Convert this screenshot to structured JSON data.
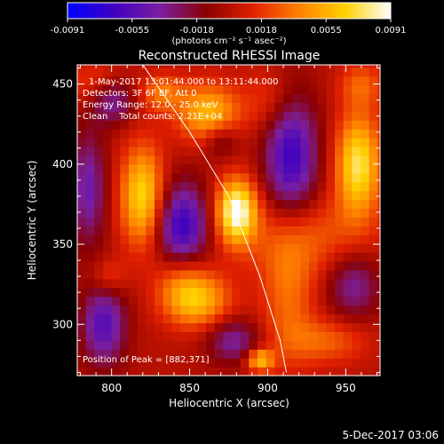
{
  "chart_data": {
    "type": "heatmap",
    "title": "Reconstructed RHESSI Image",
    "xlabel": "Heliocentric X (arcsec)",
    "ylabel": "Heliocentric Y (arcsec)",
    "xlim": [
      778,
      972
    ],
    "ylim": [
      268,
      462
    ],
    "x_ticks": [
      800,
      850,
      900,
      950
    ],
    "y_ticks": [
      300,
      350,
      400,
      450
    ],
    "colorbar": {
      "min": -0.0091,
      "max": 0.0091,
      "ticks": [
        "-0.0091",
        "-0.0055",
        "-0.0018",
        "0.0018",
        "0.0055",
        "0.0091"
      ],
      "unit_label": "(photons cm⁻² s⁻¹ asec⁻²)",
      "colormap": [
        "#0000ff",
        "#4000c0",
        "#7a1fa0",
        "#8a0000",
        "#e02000",
        "#ff8000",
        "#ffd000",
        "#ffffff"
      ]
    },
    "annotations": {
      "time_range": "1-May-2017 13:01:44.000 to 13:11:44.000",
      "detectors": "Detectors: 3F 6F 8F, Att 0",
      "energy_range": "Energy Range: 12.0 - 25.0 keV",
      "method": "Clean    Total counts: 2.21E+04",
      "peak": "Position of Peak = [882,371]"
    },
    "limb_curve": [
      [
        820,
        462
      ],
      [
        850,
        420
      ],
      [
        875,
        380
      ],
      [
        895,
        330
      ],
      [
        908,
        290
      ],
      [
        912,
        270
      ]
    ],
    "sources": [
      {
        "x": 880,
        "y": 371,
        "amp": 0.0091,
        "sx": 9,
        "sy": 14
      },
      {
        "x": 820,
        "y": 380,
        "amp": 0.007,
        "sx": 10,
        "sy": 22
      },
      {
        "x": 862,
        "y": 432,
        "amp": 0.0058,
        "sx": 14,
        "sy": 13
      },
      {
        "x": 958,
        "y": 400,
        "amp": 0.0075,
        "sx": 10,
        "sy": 22
      },
      {
        "x": 832,
        "y": 445,
        "amp": 0.0035,
        "sx": 10,
        "sy": 8
      },
      {
        "x": 855,
        "y": 315,
        "amp": 0.0055,
        "sx": 15,
        "sy": 12
      },
      {
        "x": 845,
        "y": 330,
        "amp": 0.0035,
        "sx": 12,
        "sy": 14
      },
      {
        "x": 925,
        "y": 355,
        "amp": 0.0028,
        "sx": 30,
        "sy": 18
      },
      {
        "x": 913,
        "y": 318,
        "amp": 0.0032,
        "sx": 12,
        "sy": 30
      },
      {
        "x": 895,
        "y": 278,
        "amp": 0.006,
        "sx": 6,
        "sy": 5
      },
      {
        "x": 798,
        "y": 330,
        "amp": 0.0024,
        "sx": 8,
        "sy": 8
      },
      {
        "x": 790,
        "y": 450,
        "amp": 0.0025,
        "sx": 12,
        "sy": 10
      },
      {
        "x": 938,
        "y": 290,
        "amp": 0.003,
        "sx": 18,
        "sy": 10
      },
      {
        "x": 960,
        "y": 450,
        "amp": 0.0028,
        "sx": 10,
        "sy": 10
      },
      {
        "x": 902,
        "y": 440,
        "amp": 0.0022,
        "sx": 12,
        "sy": 14
      },
      {
        "x": 785,
        "y": 385,
        "amp": -0.0045,
        "sx": 8,
        "sy": 25
      },
      {
        "x": 845,
        "y": 360,
        "amp": -0.007,
        "sx": 12,
        "sy": 20
      },
      {
        "x": 915,
        "y": 405,
        "amp": -0.0065,
        "sx": 12,
        "sy": 28
      },
      {
        "x": 795,
        "y": 300,
        "amp": -0.0055,
        "sx": 10,
        "sy": 18
      },
      {
        "x": 955,
        "y": 325,
        "amp": -0.004,
        "sx": 12,
        "sy": 15
      },
      {
        "x": 800,
        "y": 440,
        "amp": -0.0045,
        "sx": 10,
        "sy": 10
      },
      {
        "x": 878,
        "y": 290,
        "amp": -0.004,
        "sx": 12,
        "sy": 10
      },
      {
        "x": 870,
        "y": 415,
        "amp": -0.003,
        "sx": 8,
        "sy": 8
      }
    ]
  },
  "footer": {
    "date": "5-Dec-2017 03:06"
  }
}
